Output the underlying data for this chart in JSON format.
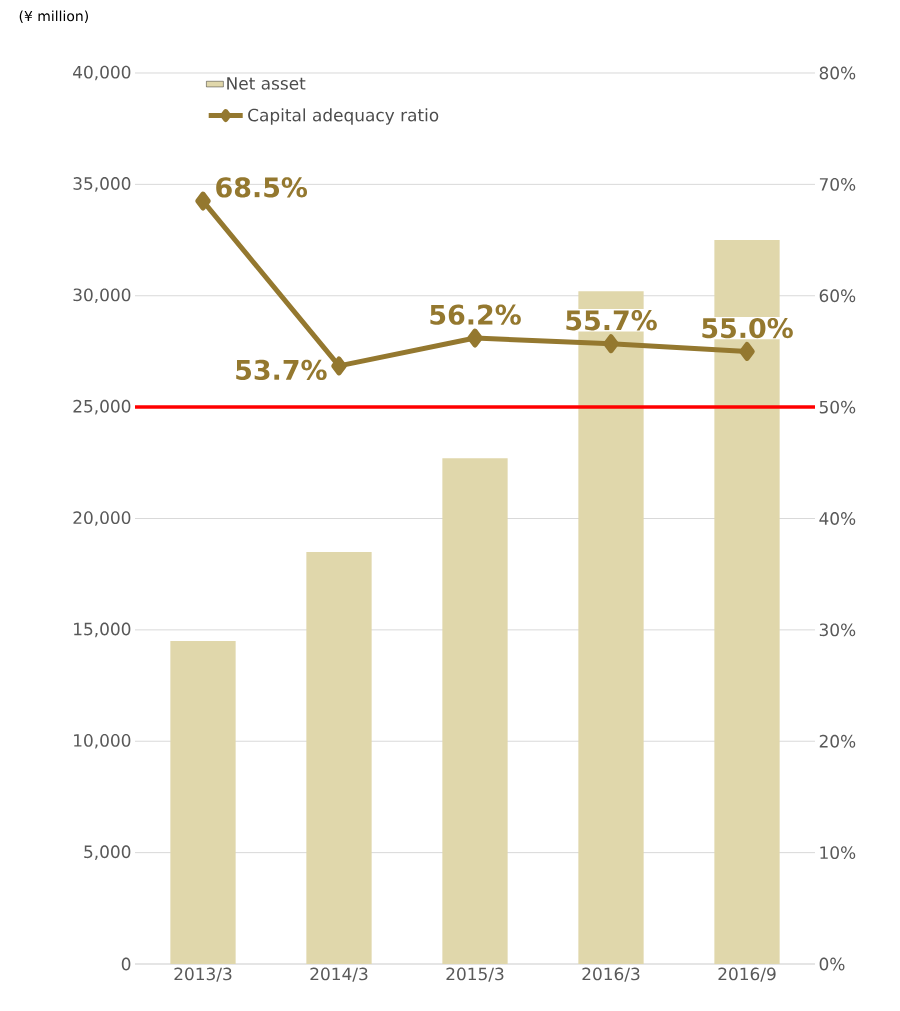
{
  "chart_data": {
    "type": "bar",
    "ylabel": "(¥ million)",
    "categories": [
      "2013/3",
      "2014/3",
      "2015/3",
      "2016/3",
      "2016/9"
    ],
    "series": [
      {
        "name": "Net asset",
        "color": "#e0d7ab",
        "values": [
          14500,
          18500,
          22700,
          30200,
          32500
        ]
      },
      {
        "name": "Capital adequacy ratio",
        "type": "line",
        "axis": "y2",
        "color": "#94782f",
        "values": [
          68.5,
          53.7,
          56.2,
          55.7,
          55.0
        ],
        "value_labels": [
          "68.5%",
          "53.7%",
          "56.2%",
          "55.7%",
          "55.0%"
        ]
      }
    ],
    "ylim": [
      0,
      40000
    ],
    "yticks": [
      0,
      {
        "value": 5000,
        "label": "5,000"
      },
      {
        "value": 10000,
        "label": "10,000"
      },
      {
        "value": 15000,
        "label": "15,000"
      },
      {
        "value": 20000,
        "label": "20,000"
      },
      {
        "value": 25000,
        "label": "25,000"
      },
      {
        "value": 30000,
        "label": "30,000"
      },
      {
        "value": 35000,
        "label": "35,000"
      },
      {
        "value": 40000,
        "label": "40,000"
      }
    ],
    "y2lim": [
      0,
      80
    ],
    "y2ticks": [
      {
        "value": 0,
        "label": "0%"
      },
      {
        "value": 10,
        "label": "10%"
      },
      {
        "value": 20,
        "label": "20%"
      },
      {
        "value": 30,
        "label": "30%"
      },
      {
        "value": 40,
        "label": "40%"
      },
      {
        "value": 50,
        "label": "50%"
      },
      {
        "value": 60,
        "label": "60%"
      },
      {
        "value": 70,
        "label": "70%"
      },
      {
        "value": 80,
        "label": "80%"
      }
    ],
    "ref_lines": [
      {
        "axis": "y2",
        "value": 50,
        "color": "#ff0000"
      }
    ],
    "grid": "y",
    "legend": "top left",
    "marker": "diamond"
  }
}
